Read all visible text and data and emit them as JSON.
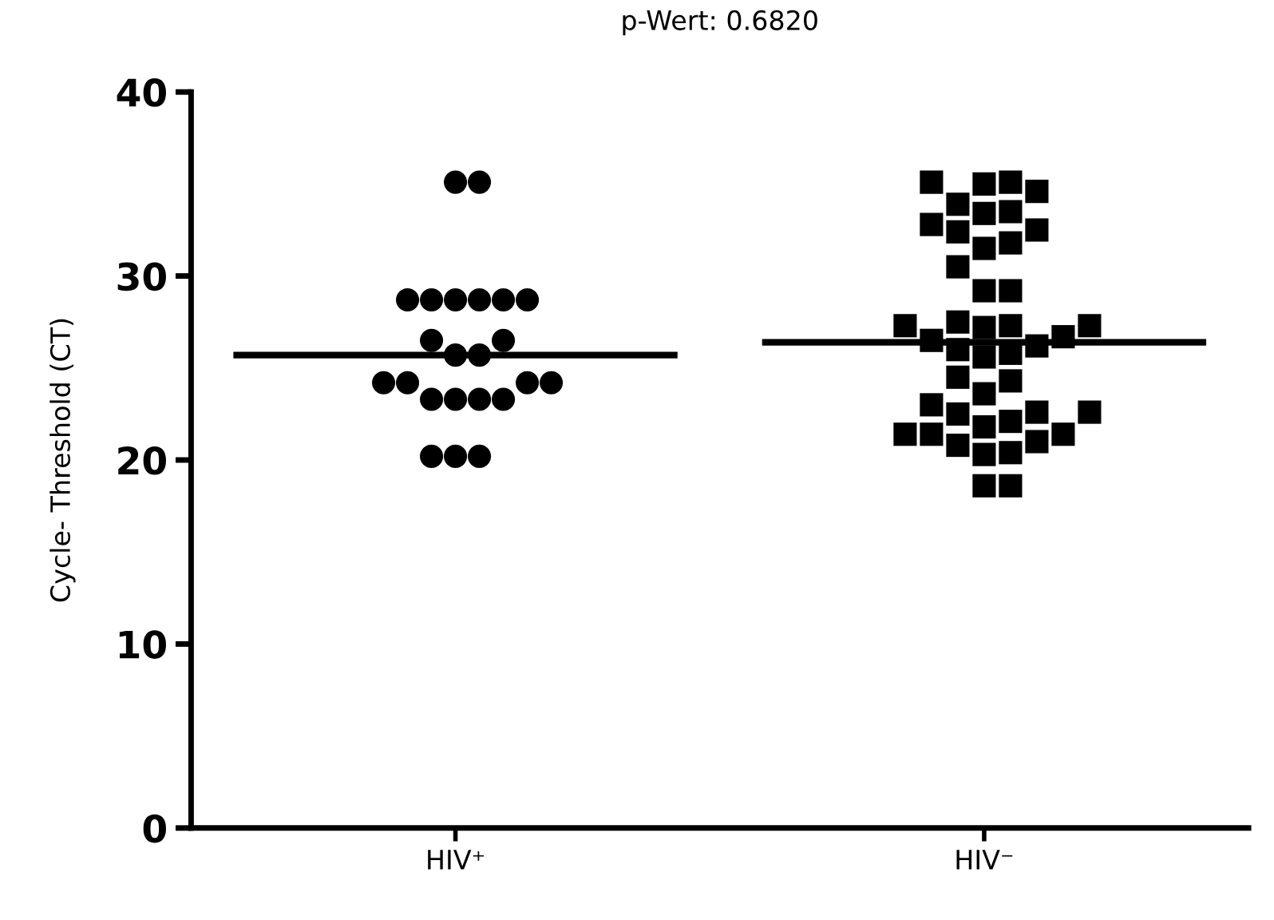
{
  "chart_data": {
    "type": "scatter",
    "title": "p-Wert: 0.6820",
    "ylabel": "Cycle- Threshold (CT)",
    "categories": [
      "HIV⁺",
      "HIV⁻"
    ],
    "ylim": [
      0,
      40
    ],
    "yticks": [
      0,
      10,
      20,
      30,
      40
    ],
    "grid": false,
    "legend": false,
    "series": [
      {
        "marker": "circle",
        "color": "#000000",
        "x": [
          "HIV⁺",
          "HIV⁺",
          "HIV⁺",
          "HIV⁺",
          "HIV⁺",
          "HIV⁺",
          "HIV⁺",
          "HIV⁺",
          "HIV⁺",
          "HIV⁺",
          "HIV⁺",
          "HIV⁺",
          "HIV⁺",
          "HIV⁺",
          "HIV⁺",
          "HIV⁺",
          "HIV⁺",
          "HIV⁺",
          "HIV⁺",
          "HIV⁺",
          "HIV⁺",
          "HIV⁺",
          "HIV⁺"
        ],
        "values": [
          35.1,
          35.1,
          28.7,
          28.7,
          28.7,
          28.7,
          28.7,
          28.7,
          26.5,
          26.5,
          25.7,
          25.7,
          24.2,
          24.2,
          24.2,
          24.2,
          23.3,
          23.3,
          23.3,
          23.3,
          20.2,
          20.2,
          20.2
        ]
      },
      {
        "marker": "square",
        "color": "#000000",
        "x": [
          "HIV⁻",
          "HIV⁻",
          "HIV⁻",
          "HIV⁻",
          "HIV⁻",
          "HIV⁻",
          "HIV⁻",
          "HIV⁻",
          "HIV⁻",
          "HIV⁻",
          "HIV⁻",
          "HIV⁻",
          "HIV⁻",
          "HIV⁻",
          "HIV⁻",
          "HIV⁻",
          "HIV⁻",
          "HIV⁻",
          "HIV⁻",
          "HIV⁻",
          "HIV⁻",
          "HIV⁻",
          "HIV⁻",
          "HIV⁻",
          "HIV⁻",
          "HIV⁻",
          "HIV⁻",
          "HIV⁻",
          "HIV⁻",
          "HIV⁻",
          "HIV⁻",
          "HIV⁻",
          "HIV⁻",
          "HIV⁻",
          "HIV⁻",
          "HIV⁻",
          "HIV⁻",
          "HIV⁻",
          "HIV⁻",
          "HIV⁻",
          "HIV⁻",
          "HIV⁻",
          "HIV⁻",
          "HIV⁻"
        ],
        "values": [
          35.1,
          34.6,
          33.5,
          33.4,
          33.9,
          35.0,
          35.1,
          32.5,
          31.8,
          30.5,
          31.5,
          32.4,
          32.8,
          29.2,
          29.2,
          26.5,
          26.0,
          27.3,
          25.6,
          27.3,
          27.2,
          27.3,
          25.8,
          27.5,
          26.2,
          26.7,
          24.3,
          24.5,
          23.6,
          22.6,
          22.5,
          20.8,
          21.8,
          20.4,
          21.4,
          21.4,
          21.4,
          20.3,
          22.1,
          21.0,
          22.6,
          23.0,
          18.6,
          18.6
        ]
      }
    ],
    "ref_lines": [
      {
        "axis": "y",
        "value": 25.7,
        "color": "#000000",
        "line_style": "solid"
      },
      {
        "axis": "y",
        "value": 26.4,
        "color": "#000000",
        "line_style": "solid"
      }
    ]
  }
}
